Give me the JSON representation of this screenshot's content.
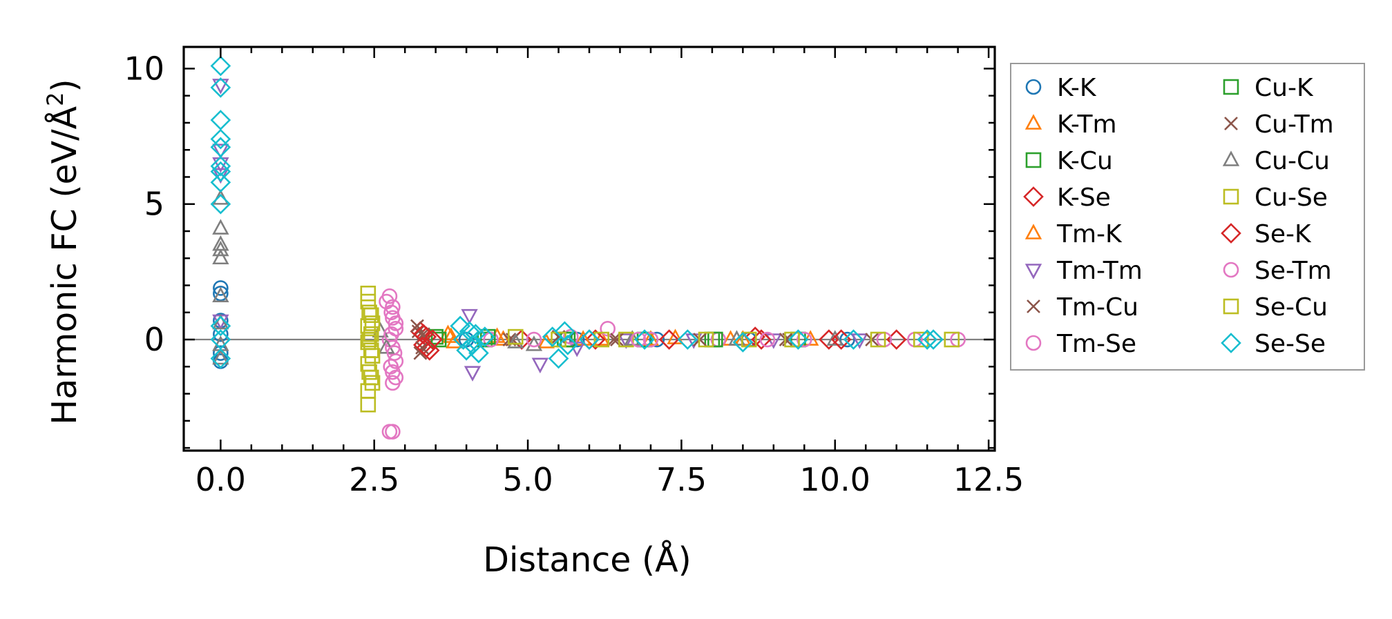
{
  "chart_data": {
    "type": "scatter",
    "title": "",
    "xlabel": "Distance (Å)",
    "ylabel_main": "Harmonic FC (eV/Å",
    "ylabel_sup": "2",
    "ylabel_close": ")",
    "xlim": [
      -0.6,
      12.6
    ],
    "ylim": [
      -4.1,
      10.8
    ],
    "xticks": [
      0.0,
      2.5,
      5.0,
      7.5,
      10.0,
      12.5
    ],
    "xtick_labels": [
      "0.0",
      "2.5",
      "5.0",
      "7.5",
      "10.0",
      "12.5"
    ],
    "yticks": [
      0,
      5,
      10
    ],
    "ytick_labels": [
      "0",
      "5",
      "10"
    ],
    "zero_line": 0,
    "legend_location": "outside-right",
    "series": [
      {
        "name": "K-K",
        "marker": "circle",
        "color": "#1f77b4",
        "points": [
          [
            0,
            1.9
          ],
          [
            0,
            1.7
          ],
          [
            0,
            0.7
          ],
          [
            0,
            0.2
          ],
          [
            0,
            -0.5
          ],
          [
            0,
            -0.8
          ],
          [
            4.0,
            0.0
          ],
          [
            5.8,
            0.0
          ],
          [
            7.1,
            0.0
          ],
          [
            8.6,
            0.0
          ],
          [
            10.2,
            0.0
          ]
        ]
      },
      {
        "name": "K-Tm",
        "marker": "triangle-up",
        "color": "#ff7f0e",
        "points": [
          [
            3.7,
            0.2
          ],
          [
            3.8,
            -0.1
          ],
          [
            4.5,
            0.1
          ],
          [
            5.3,
            -0.1
          ],
          [
            6.2,
            0.0
          ],
          [
            7.4,
            0.05
          ],
          [
            8.5,
            0.0
          ],
          [
            9.6,
            0.0
          ]
        ]
      },
      {
        "name": "K-Cu",
        "marker": "square",
        "color": "#2ca02c",
        "points": [
          [
            3.5,
            0.1
          ],
          [
            4.3,
            0.0
          ],
          [
            5.6,
            0.0
          ],
          [
            6.9,
            0.0
          ],
          [
            8.0,
            0.0
          ],
          [
            9.4,
            0.0
          ]
        ]
      },
      {
        "name": "K-Se",
        "marker": "diamond",
        "color": "#d62728",
        "points": [
          [
            3.25,
            0.3
          ],
          [
            3.3,
            -0.2
          ],
          [
            3.35,
            0.1
          ],
          [
            3.4,
            -0.4
          ],
          [
            4.9,
            0.0
          ],
          [
            6.1,
            0.0
          ],
          [
            7.3,
            0.0
          ],
          [
            8.7,
            0.1
          ],
          [
            9.9,
            0.0
          ],
          [
            11.0,
            0.0
          ]
        ]
      },
      {
        "name": "Tm-K",
        "marker": "triangle-up",
        "color": "#ff7f0e",
        "points": [
          [
            3.75,
            0.1
          ],
          [
            4.6,
            0.0
          ],
          [
            5.9,
            0.0
          ],
          [
            7.0,
            0.0
          ],
          [
            8.3,
            0.0
          ]
        ]
      },
      {
        "name": "Tm-Tm",
        "marker": "triangle-down",
        "color": "#9467bd",
        "points": [
          [
            0,
            9.4
          ],
          [
            0,
            7.0
          ],
          [
            0,
            6.5
          ],
          [
            0,
            6.1
          ],
          [
            0,
            0.7
          ],
          [
            4.05,
            0.9
          ],
          [
            4.1,
            -1.2
          ],
          [
            5.2,
            -0.9
          ],
          [
            5.8,
            -0.3
          ],
          [
            6.6,
            0.0
          ],
          [
            7.7,
            0.0
          ],
          [
            9.0,
            0.0
          ],
          [
            10.4,
            0.0
          ]
        ]
      },
      {
        "name": "Tm-Cu",
        "marker": "x",
        "color": "#8c564b",
        "points": [
          [
            3.2,
            0.5
          ],
          [
            3.25,
            -0.5
          ],
          [
            3.3,
            0.2
          ],
          [
            4.7,
            0.0
          ],
          [
            5.5,
            0.1
          ],
          [
            6.4,
            0.0
          ],
          [
            7.8,
            0.0
          ],
          [
            9.2,
            0.0
          ],
          [
            10.6,
            0.0
          ]
        ]
      },
      {
        "name": "Tm-Se",
        "marker": "circle",
        "color": "#e377c2",
        "points": [
          [
            2.75,
            1.6
          ],
          [
            2.8,
            1.2
          ],
          [
            2.8,
            0.8
          ],
          [
            2.85,
            0.4
          ],
          [
            2.75,
            0.0
          ],
          [
            2.8,
            -0.3
          ],
          [
            2.85,
            -0.8
          ],
          [
            2.8,
            -1.2
          ],
          [
            2.8,
            -1.6
          ],
          [
            2.75,
            -3.4
          ],
          [
            2.8,
            -3.4
          ],
          [
            4.4,
            0.0
          ],
          [
            5.7,
            0.1
          ],
          [
            6.3,
            0.4
          ],
          [
            7.0,
            0.0
          ],
          [
            8.1,
            0.0
          ],
          [
            9.5,
            0.0
          ],
          [
            10.8,
            0.0
          ],
          [
            12.0,
            0.0
          ]
        ]
      },
      {
        "name": "Cu-K",
        "marker": "square",
        "color": "#2ca02c",
        "points": [
          [
            3.55,
            0.0
          ],
          [
            4.35,
            0.1
          ],
          [
            5.65,
            0.0
          ],
          [
            8.05,
            0.0
          ]
        ]
      },
      {
        "name": "Cu-Tm",
        "marker": "x",
        "color": "#8c564b",
        "points": [
          [
            3.22,
            0.3
          ],
          [
            3.28,
            -0.3
          ],
          [
            4.75,
            0.0
          ],
          [
            6.45,
            0.0
          ],
          [
            9.25,
            0.0
          ]
        ]
      },
      {
        "name": "Cu-Cu",
        "marker": "triangle-up",
        "color": "#7f7f7f",
        "points": [
          [
            0,
            5.2
          ],
          [
            0,
            4.1
          ],
          [
            0,
            3.5
          ],
          [
            0,
            3.3
          ],
          [
            0,
            3.0
          ],
          [
            0,
            1.6
          ],
          [
            0,
            0.6
          ],
          [
            0,
            -0.2
          ],
          [
            0,
            -0.7
          ],
          [
            2.6,
            0.3
          ],
          [
            2.7,
            -0.3
          ],
          [
            4.8,
            -0.1
          ],
          [
            5.1,
            -0.2
          ],
          [
            6.7,
            0.0
          ],
          [
            8.4,
            0.0
          ],
          [
            10.0,
            0.0
          ]
        ]
      },
      {
        "name": "Cu-Se",
        "marker": "square",
        "color": "#bcbd22",
        "points": [
          [
            2.4,
            1.7
          ],
          [
            2.4,
            1.4
          ],
          [
            2.45,
            0.9
          ],
          [
            2.4,
            0.5
          ],
          [
            2.45,
            0.2
          ],
          [
            2.4,
            -0.1
          ],
          [
            2.45,
            -0.4
          ],
          [
            2.4,
            -0.9
          ],
          [
            2.45,
            -1.4
          ],
          [
            2.4,
            -1.9
          ],
          [
            2.4,
            -2.4
          ],
          [
            4.8,
            0.1
          ],
          [
            5.5,
            0.0
          ],
          [
            6.6,
            0.0
          ],
          [
            7.9,
            0.0
          ],
          [
            9.3,
            0.0
          ],
          [
            10.7,
            0.0
          ],
          [
            11.9,
            0.0
          ]
        ]
      },
      {
        "name": "Se-K",
        "marker": "diamond",
        "color": "#d62728",
        "points": [
          [
            3.3,
            0.2
          ],
          [
            3.35,
            -0.3
          ],
          [
            3.45,
            0.0
          ],
          [
            6.0,
            0.0
          ],
          [
            8.8,
            0.0
          ],
          [
            10.1,
            0.0
          ]
        ]
      },
      {
        "name": "Se-Tm",
        "marker": "circle",
        "color": "#e377c2",
        "points": [
          [
            2.7,
            1.4
          ],
          [
            2.78,
            1.0
          ],
          [
            2.85,
            0.6
          ],
          [
            2.78,
            0.2
          ],
          [
            2.83,
            -0.5
          ],
          [
            2.77,
            -1.0
          ],
          [
            2.85,
            -1.4
          ],
          [
            5.1,
            0.0
          ],
          [
            6.8,
            0.0
          ],
          [
            8.9,
            0.0
          ],
          [
            11.3,
            0.0
          ]
        ]
      },
      {
        "name": "Se-Cu",
        "marker": "square",
        "color": "#bcbd22",
        "points": [
          [
            2.42,
            1.0
          ],
          [
            2.47,
            0.6
          ],
          [
            2.42,
            0.0
          ],
          [
            2.47,
            -0.6
          ],
          [
            2.42,
            -1.2
          ],
          [
            2.47,
            -1.6
          ],
          [
            6.2,
            0.0
          ],
          [
            8.6,
            0.0
          ],
          [
            11.4,
            0.0
          ]
        ]
      },
      {
        "name": "Se-Se",
        "marker": "diamond",
        "color": "#17becf",
        "points": [
          [
            0,
            10.1
          ],
          [
            0,
            9.3
          ],
          [
            0,
            8.1
          ],
          [
            0,
            7.4
          ],
          [
            0,
            7.1
          ],
          [
            0,
            6.4
          ],
          [
            0,
            6.2
          ],
          [
            0,
            5.8
          ],
          [
            0,
            5.0
          ],
          [
            0,
            0.5
          ],
          [
            0,
            0.0
          ],
          [
            0,
            -0.7
          ],
          [
            3.9,
            0.5
          ],
          [
            3.95,
            0.0
          ],
          [
            4.0,
            -0.4
          ],
          [
            4.05,
            0.3
          ],
          [
            4.1,
            -0.2
          ],
          [
            4.15,
            0.2
          ],
          [
            4.2,
            -0.5
          ],
          [
            4.3,
            0.1
          ],
          [
            5.4,
            0.1
          ],
          [
            5.5,
            -0.7
          ],
          [
            5.6,
            0.3
          ],
          [
            5.65,
            -0.2
          ],
          [
            6.0,
            0.0
          ],
          [
            6.9,
            0.0
          ],
          [
            7.6,
            0.0
          ],
          [
            8.5,
            -0.1
          ],
          [
            9.4,
            0.0
          ],
          [
            10.3,
            0.0
          ],
          [
            11.5,
            0.0
          ],
          [
            11.6,
            0.0
          ]
        ]
      }
    ]
  }
}
